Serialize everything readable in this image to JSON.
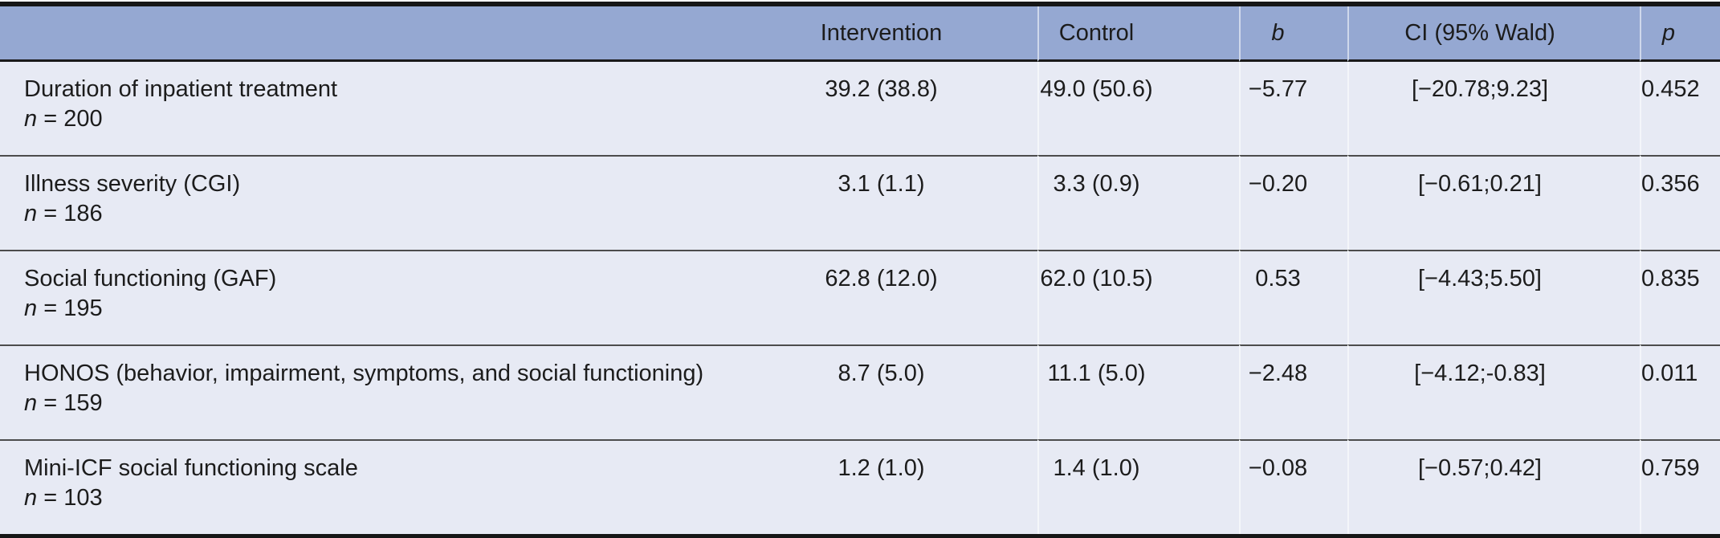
{
  "colors": {
    "header_bg": "#95a8d2",
    "body_bg": "#e7eaf4",
    "border_dark": "#161616",
    "row_line": "#4c4c4c",
    "column_line": "rgba(255,255,255,0.55)",
    "text": "#1c1c1c"
  },
  "table": {
    "headers": [
      {
        "label": ""
      },
      {
        "label": "Intervention"
      },
      {
        "label": "Control"
      },
      {
        "label": "b"
      },
      {
        "label": "CI (95% Wald)"
      },
      {
        "label": "p"
      }
    ],
    "rows": [
      {
        "label": "Duration of inpatient treatment",
        "n_prefix": "n",
        "n_rest": " = 200",
        "intervention": "39.2 (38.8)",
        "control": "49.0 (50.6)",
        "b": "−5.77",
        "ci": "[−20.78;9.23]",
        "p": "0.452"
      },
      {
        "label": "Illness severity (CGI)",
        "n_prefix": "n",
        "n_rest": " = 186",
        "intervention": "3.1 (1.1)",
        "control": "3.3 (0.9)",
        "b": "−0.20",
        "ci": "[−0.61;0.21]",
        "p": "0.356"
      },
      {
        "label": "Social functioning (GAF)",
        "n_prefix": "n",
        "n_rest": " = 195",
        "intervention": "62.8 (12.0)",
        "control": "62.0 (10.5)",
        "b": "0.53",
        "ci": "[−4.43;5.50]",
        "p": "0.835"
      },
      {
        "label": "HONOS (behavior, impairment, symptoms, and social functioning)",
        "n_prefix": "n",
        "n_rest": " = 159",
        "intervention": "8.7 (5.0)",
        "control": "11.1 (5.0)",
        "b": "−2.48",
        "ci": "[−4.12;-0.83]",
        "p": "0.011"
      },
      {
        "label": "Mini-ICF social functioning scale",
        "n_prefix": "n",
        "n_rest": " = 103",
        "intervention": "1.2 (1.0)",
        "control": "1.4 (1.0)",
        "b": "−0.08",
        "ci": "[−0.57;0.42]",
        "p": "0.759"
      }
    ]
  },
  "chart_data": {
    "type": "table",
    "columns": [
      "",
      "Intervention",
      "Control",
      "b",
      "CI (95% Wald)",
      "p"
    ],
    "rows": [
      [
        "Duration of inpatient treatment (n = 200)",
        "39.2 (38.8)",
        "49.0 (50.6)",
        "−5.77",
        "[−20.78;9.23]",
        "0.452"
      ],
      [
        "Illness severity (CGI) (n = 186)",
        "3.1 (1.1)",
        "3.3 (0.9)",
        "−0.20",
        "[−0.61;0.21]",
        "0.356"
      ],
      [
        "Social functioning (GAF) (n = 195)",
        "62.8 (12.0)",
        "62.0 (10.5)",
        "0.53",
        "[−4.43;5.50]",
        "0.835"
      ],
      [
        "HONOS (behavior, impairment, symptoms, and social functioning) (n = 159)",
        "8.7 (5.0)",
        "11.1 (5.0)",
        "−2.48",
        "[−4.12;-0.83]",
        "0.011"
      ],
      [
        "Mini-ICF social functioning scale (n = 103)",
        "1.2 (1.0)",
        "1.4 (1.0)",
        "−0.08",
        "[−0.57;0.42]",
        "0.759"
      ]
    ]
  }
}
